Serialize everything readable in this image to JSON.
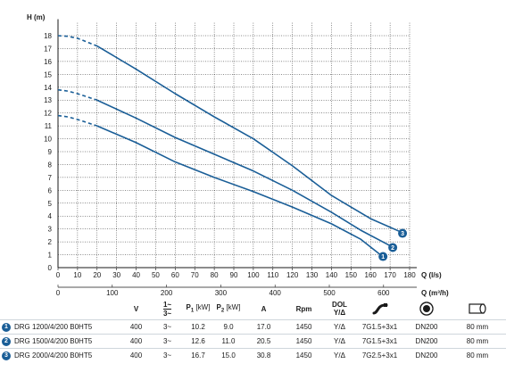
{
  "chart_data": {
    "type": "line",
    "xlabel": "Q (l/s)",
    "x2label": "Q (m³/h)",
    "ylabel": "H (m)",
    "xlim": [
      0,
      180
    ],
    "ylim": [
      0,
      19
    ],
    "x_ticks": [
      "0",
      "10",
      "20",
      "30",
      "40",
      "50",
      "60",
      "70",
      "80",
      "90",
      "100",
      "110",
      "120",
      "130",
      "140",
      "150",
      "160",
      "170",
      "180"
    ],
    "y_ticks": [
      "0",
      "1",
      "2",
      "3",
      "4",
      "5",
      "6",
      "7",
      "8",
      "9",
      "10",
      "11",
      "12",
      "13",
      "14",
      "15",
      "16",
      "17",
      "18"
    ],
    "x2_ticks": [
      "0",
      "100",
      "200",
      "300",
      "400",
      "500",
      "600"
    ],
    "grid": true,
    "series": [
      {
        "marker": "1",
        "dashed": [
          [
            0,
            11.8
          ],
          [
            5,
            11.7
          ],
          [
            10,
            11.5
          ],
          [
            20,
            11.0
          ]
        ],
        "points": [
          [
            20,
            11.0
          ],
          [
            40,
            9.7
          ],
          [
            60,
            8.2
          ],
          [
            80,
            7.0
          ],
          [
            100,
            5.9
          ],
          [
            120,
            4.7
          ],
          [
            140,
            3.4
          ],
          [
            155,
            2.2
          ],
          [
            165,
            1.0
          ]
        ],
        "color": "#1a5e97"
      },
      {
        "marker": "2",
        "dashed": [
          [
            0,
            13.8
          ],
          [
            5,
            13.7
          ],
          [
            10,
            13.5
          ],
          [
            20,
            13.0
          ]
        ],
        "points": [
          [
            20,
            13.0
          ],
          [
            40,
            11.6
          ],
          [
            60,
            10.1
          ],
          [
            80,
            8.8
          ],
          [
            100,
            7.5
          ],
          [
            120,
            6.0
          ],
          [
            140,
            4.3
          ],
          [
            155,
            2.9
          ],
          [
            170,
            1.7
          ]
        ],
        "color": "#1a5e97"
      },
      {
        "marker": "3",
        "dashed": [
          [
            0,
            18.0
          ],
          [
            5,
            17.95
          ],
          [
            10,
            17.8
          ],
          [
            20,
            17.2
          ]
        ],
        "points": [
          [
            20,
            17.2
          ],
          [
            40,
            15.4
          ],
          [
            60,
            13.5
          ],
          [
            80,
            11.7
          ],
          [
            100,
            10.0
          ],
          [
            120,
            7.9
          ],
          [
            140,
            5.6
          ],
          [
            160,
            3.8
          ],
          [
            175,
            2.8
          ]
        ],
        "color": "#1a5e97"
      }
    ]
  },
  "table": {
    "headers": {
      "v": "V",
      "phase_top": "1~",
      "phase_bot": "3~",
      "p1": "P",
      "p1_sub": "1",
      "p1_unit": "[kW]",
      "p2": "P",
      "p2_sub": "2",
      "p2_unit": "[kW]",
      "a": "A",
      "rpm": "Rpm",
      "dol_top": "DOL",
      "dol_bot": "Y/Δ"
    },
    "icons": [
      "cable-icon",
      "flange-icon",
      "diameter-icon"
    ],
    "rows": [
      {
        "num": "1",
        "model": "DRG 1200/4/200 B0HT5",
        "v": "400",
        "phase": "3~",
        "p1": "10.2",
        "p2": "9.0",
        "a": "17.0",
        "rpm": "1450",
        "start": "Y/Δ",
        "cable": "7G1.5+3x1",
        "dn": "DN200",
        "dia": "80 mm"
      },
      {
        "num": "2",
        "model": "DRG 1500/4/200 B0HT5",
        "v": "400",
        "phase": "3~",
        "p1": "12.6",
        "p2": "11.0",
        "a": "20.5",
        "rpm": "1450",
        "start": "Y/Δ",
        "cable": "7G1.5+3x1",
        "dn": "DN200",
        "dia": "80 mm"
      },
      {
        "num": "3",
        "model": "DRG 2000/4/200 B0HT5",
        "v": "400",
        "phase": "3~",
        "p1": "16.7",
        "p2": "15.0",
        "a": "30.8",
        "rpm": "1450",
        "start": "Y/Δ",
        "cable": "7G2.5+3x1",
        "dn": "DN200",
        "dia": "80 mm"
      }
    ]
  },
  "colors": {
    "curve": "#1a5e97",
    "grid": "#1a1a1a",
    "rule": "#cfd6dc"
  }
}
